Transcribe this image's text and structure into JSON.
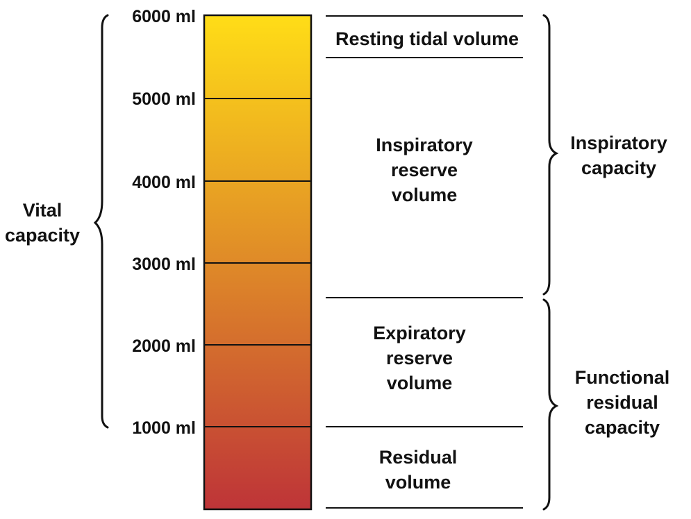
{
  "colors": {
    "bar_top": "#FFDD17",
    "bar_bottom": "#BE3438",
    "line": "#111111",
    "text": "#111111"
  },
  "scale": {
    "ticks": [
      "6000 ml",
      "5000 ml",
      "4000 ml",
      "3000 ml",
      "2000 ml",
      "1000 ml"
    ]
  },
  "volumes": {
    "resting_tidal": "Resting tidal volume",
    "inspiratory_reserve": [
      "Inspiratory",
      "reserve",
      "volume"
    ],
    "expiratory_reserve": [
      "Expiratory",
      "reserve",
      "volume"
    ],
    "residual": [
      "Residual",
      "volume"
    ]
  },
  "capacities": {
    "vital": [
      "Vital",
      "capacity"
    ],
    "inspiratory": [
      "Inspiratory",
      "capacity"
    ],
    "functional_residual": [
      "Functional",
      "residual",
      "capacity"
    ]
  }
}
